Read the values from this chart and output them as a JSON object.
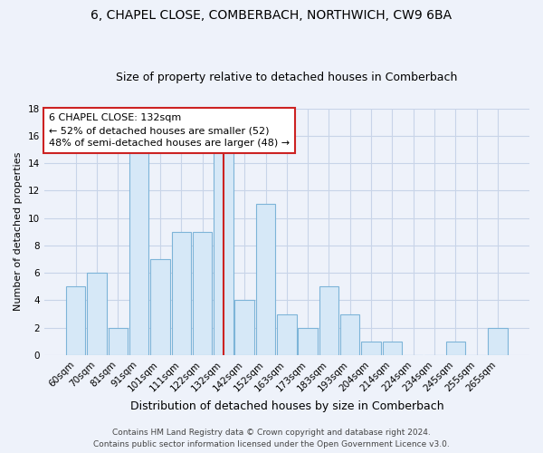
{
  "title": "6, CHAPEL CLOSE, COMBERBACH, NORTHWICH, CW9 6BA",
  "subtitle": "Size of property relative to detached houses in Comberbach",
  "xlabel": "Distribution of detached houses by size in Comberbach",
  "ylabel": "Number of detached properties",
  "bar_labels": [
    "60sqm",
    "70sqm",
    "81sqm",
    "91sqm",
    "101sqm",
    "111sqm",
    "122sqm",
    "132sqm",
    "142sqm",
    "152sqm",
    "163sqm",
    "173sqm",
    "183sqm",
    "193sqm",
    "204sqm",
    "214sqm",
    "224sqm",
    "234sqm",
    "245sqm",
    "255sqm",
    "265sqm"
  ],
  "bar_values": [
    5,
    6,
    2,
    15,
    7,
    9,
    9,
    15,
    4,
    11,
    3,
    2,
    5,
    3,
    1,
    1,
    0,
    0,
    1,
    0,
    2
  ],
  "property_bar_index": 7,
  "bar_fill_color": "#d6e8f7",
  "bar_edge_color": "#7db4d8",
  "property_line_color": "#cc2222",
  "property_line_index": 7,
  "ylim": [
    0,
    18
  ],
  "yticks": [
    0,
    2,
    4,
    6,
    8,
    10,
    12,
    14,
    16,
    18
  ],
  "annotation_title": "6 CHAPEL CLOSE: 132sqm",
  "annotation_line1": "← 52% of detached houses are smaller (52)",
  "annotation_line2": "48% of semi-detached houses are larger (48) →",
  "footer_line1": "Contains HM Land Registry data © Crown copyright and database right 2024.",
  "footer_line2": "Contains public sector information licensed under the Open Government Licence v3.0.",
  "bg_color": "#eef2fa",
  "grid_color": "#c8d4e8",
  "annotation_box_color": "#ffffff",
  "annotation_border_color": "#cc2222",
  "title_fontsize": 10,
  "subtitle_fontsize": 9,
  "xlabel_fontsize": 9,
  "ylabel_fontsize": 8,
  "tick_fontsize": 7.5,
  "footer_fontsize": 6.5,
  "annotation_fontsize": 8
}
